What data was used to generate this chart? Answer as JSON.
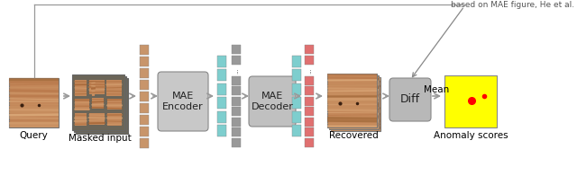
{
  "bg_color": "#ffffff",
  "title_text": "based on MAE figure, He et al.",
  "title_fontsize": 6.5,
  "token_gray": "#999999",
  "token_teal": "#7ecece",
  "token_salmon": "#e07070",
  "arrow_color": "#999999",
  "yellow_bg": "#ffff00",
  "anomaly_dot_color": "#ff0000",
  "wood_light": "#c8956a",
  "wood_dark": "#8b5e3c",
  "wood_mid": "#b07848",
  "mask_bg": "#6b6b5a",
  "encoder_color": "#cccccc",
  "labels": {
    "query": "Query",
    "masked": "Masked input",
    "recovered": "Recovered",
    "anomaly": "Anomaly scores",
    "mean": "Mean",
    "encoder": "MAE\nEncoder",
    "decoder": "MAE\nDecoder",
    "diff": "Diff"
  },
  "label_fontsize": 7.5
}
